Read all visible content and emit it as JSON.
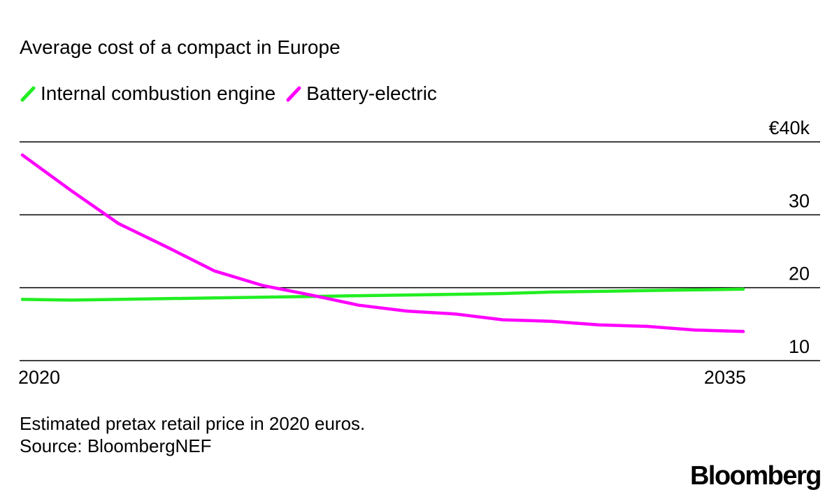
{
  "chart_data": {
    "type": "line",
    "title": "Average cost of a compact in Europe",
    "xlabel": "",
    "ylabel": "",
    "x": [
      2020,
      2021,
      2022,
      2023,
      2024,
      2025,
      2026,
      2027,
      2028,
      2029,
      2030,
      2031,
      2032,
      2033,
      2034,
      2035
    ],
    "xlim": [
      2020,
      2035
    ],
    "ylim": [
      10,
      40
    ],
    "x_tick_labels": [
      "2020",
      "2035"
    ],
    "y_ticks": [
      {
        "value": 40,
        "label": "€40k"
      },
      {
        "value": 30,
        "label": "30"
      },
      {
        "value": 20,
        "label": "20"
      },
      {
        "value": 10,
        "label": "10"
      }
    ],
    "grid": true,
    "legend_position": "top-left",
    "series": [
      {
        "name": "Internal combustion engine",
        "color": "#22EE22",
        "values": [
          18.4,
          18.3,
          18.4,
          18.5,
          18.6,
          18.7,
          18.8,
          18.9,
          19.0,
          19.1,
          19.2,
          19.4,
          19.5,
          19.6,
          19.7,
          19.8
        ]
      },
      {
        "name": "Battery-electric",
        "color": "#FF00FF",
        "values": [
          38.2,
          33.4,
          28.8,
          25.6,
          22.3,
          20.3,
          19.0,
          17.6,
          16.8,
          16.4,
          15.6,
          15.4,
          14.9,
          14.7,
          14.2,
          14.0
        ]
      }
    ]
  },
  "notes": {
    "line1": "Estimated pretax retail price in 2020 euros.",
    "line2": "Source: BloombergNEF"
  },
  "brand": "Bloomberg"
}
